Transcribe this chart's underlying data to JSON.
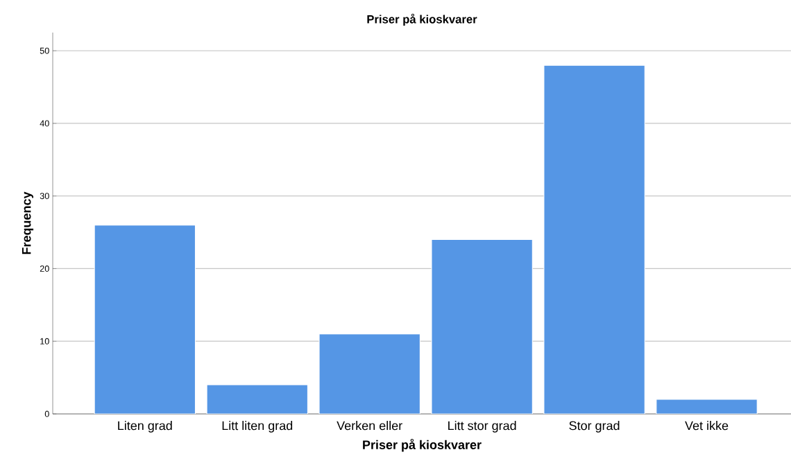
{
  "chart_data": {
    "type": "bar",
    "title": "Priser på kioskvarer",
    "xlabel": "Priser på kioskvarer",
    "ylabel": "Frequency",
    "categories": [
      "Liten grad",
      "Litt liten grad",
      "Verken eller",
      "Litt stor grad",
      "Stor grad",
      "Vet ikke"
    ],
    "values": [
      26,
      4,
      11,
      24,
      48,
      2
    ],
    "color": "#5596e5",
    "ylim": [
      0,
      52.5
    ],
    "yticks": [
      0,
      10,
      20,
      30,
      40,
      50
    ],
    "grid": "y"
  }
}
